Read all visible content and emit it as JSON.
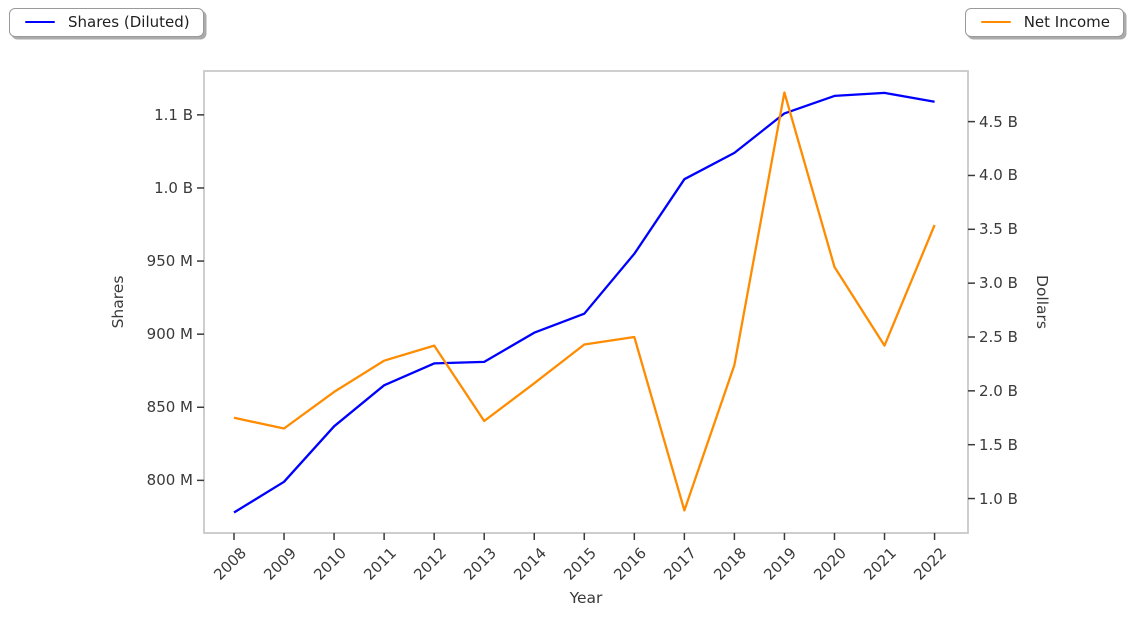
{
  "legend_left": {
    "label": "Shares (Diluted)"
  },
  "legend_right": {
    "label": "Net Income"
  },
  "chart_data": {
    "type": "line",
    "x": [
      2008,
      2009,
      2010,
      2011,
      2012,
      2013,
      2014,
      2015,
      2016,
      2017,
      2018,
      2019,
      2020,
      2021,
      2022
    ],
    "x_axis": {
      "label": "Year",
      "tick_labels": [
        "2008",
        "2009",
        "2010",
        "2011",
        "2012",
        "2013",
        "2014",
        "2015",
        "2016",
        "2017",
        "2018",
        "2019",
        "2020",
        "2021",
        "2022"
      ]
    },
    "left_axis": {
      "label": "Shares",
      "unit": "millions of shares",
      "tick_values": [
        800,
        850,
        900,
        950,
        1000,
        1050
      ],
      "tick_labels": [
        "800 M",
        "850 M",
        "900 M",
        "950 M",
        "1.0 B",
        "1.1 B"
      ],
      "range": [
        764,
        1080
      ]
    },
    "right_axis": {
      "label": "Dollars",
      "unit": "billions of dollars",
      "tick_values": [
        1.0,
        1.5,
        2.0,
        2.5,
        3.0,
        3.5,
        4.0,
        4.5
      ],
      "tick_labels": [
        "1.0 B",
        "1.5 B",
        "2.0 B",
        "2.5 B",
        "3.0 B",
        "3.5 B",
        "4.0 B",
        "4.5 B"
      ],
      "range": [
        0.68,
        4.97
      ]
    },
    "series": [
      {
        "name": "Shares (Diluted)",
        "axis": "left",
        "color": "#0000ff",
        "values": [
          778,
          799,
          837,
          865,
          880,
          881,
          901,
          914,
          955,
          1006,
          1024,
          1051,
          1063,
          1065,
          1059
        ]
      },
      {
        "name": "Net Income",
        "axis": "right",
        "color": "#ff8c00",
        "values": [
          1.75,
          1.65,
          1.99,
          2.28,
          2.42,
          1.72,
          2.07,
          2.43,
          2.5,
          0.89,
          2.24,
          4.77,
          3.15,
          2.42,
          3.54
        ]
      }
    ],
    "grid": false,
    "legend_position": [
      "upper-left-outside",
      "upper-right-outside"
    ]
  }
}
